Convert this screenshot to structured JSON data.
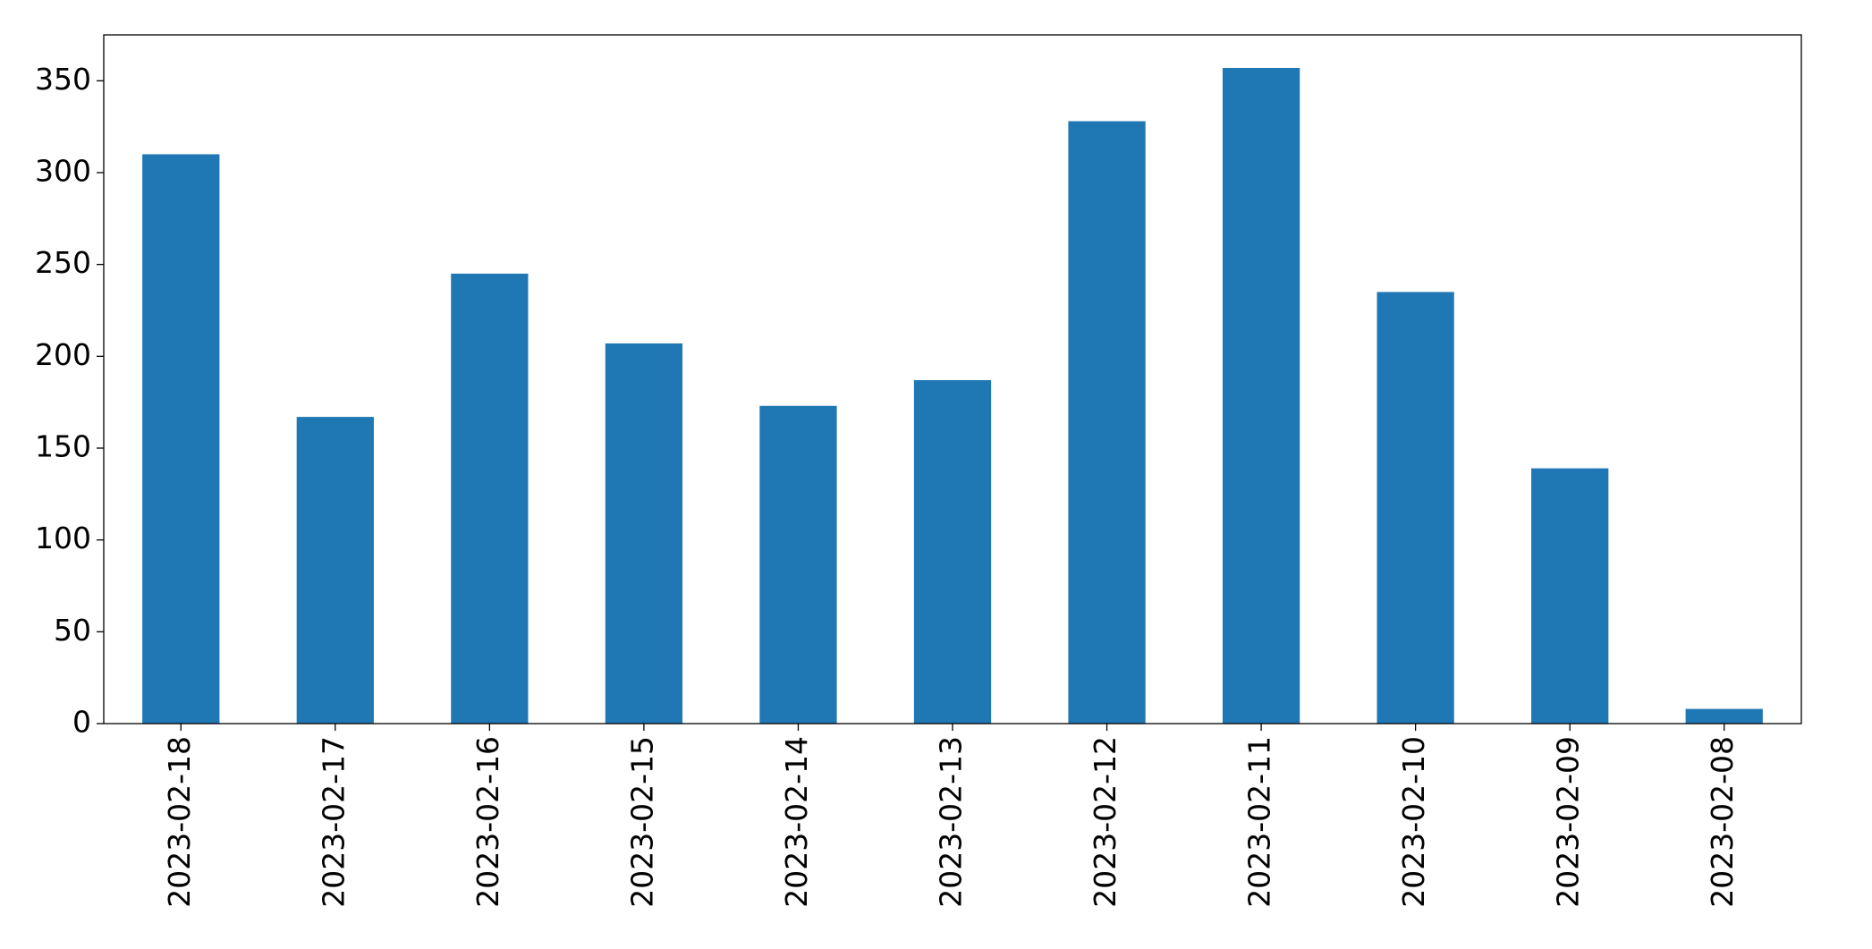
{
  "chart_data": {
    "type": "bar",
    "categories": [
      "2023-02-18",
      "2023-02-17",
      "2023-02-16",
      "2023-02-15",
      "2023-02-14",
      "2023-02-13",
      "2023-02-12",
      "2023-02-11",
      "2023-02-10",
      "2023-02-09",
      "2023-02-08"
    ],
    "values": [
      310,
      167,
      245,
      207,
      173,
      187,
      328,
      357,
      235,
      139,
      8
    ],
    "color": "#1f77b4",
    "ylim": [
      0,
      375
    ],
    "yticks": [
      0,
      50,
      100,
      150,
      200,
      250,
      300,
      350
    ],
    "grid": false
  }
}
